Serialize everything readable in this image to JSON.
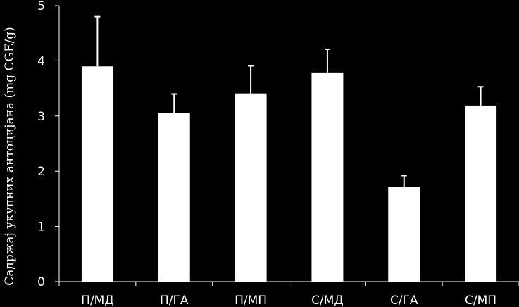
{
  "chart_data": {
    "type": "bar",
    "categories": [
      "П/МД",
      "П/ГА",
      "П/МП",
      "С/МД",
      "С/ГА",
      "С/МП"
    ],
    "values": [
      3.9,
      3.06,
      3.41,
      3.79,
      1.72,
      3.19
    ],
    "errors": [
      0.9,
      0.34,
      0.5,
      0.42,
      0.2,
      0.34
    ],
    "title": "",
    "xlabel": "",
    "ylabel": "Садржај укупних антоцијана (mg CGE/g)",
    "ylim": [
      0,
      5
    ],
    "yticks": [
      0,
      1,
      2,
      3,
      4,
      5
    ],
    "grid": false,
    "colors": {
      "background": "#000000",
      "bar": "#ffffff",
      "axis": "#ffffff",
      "text": "#ffffff"
    }
  }
}
